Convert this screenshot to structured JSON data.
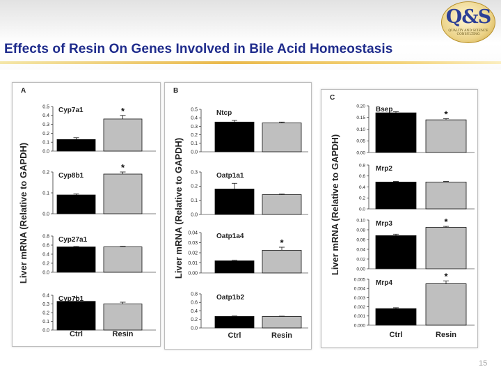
{
  "slide": {
    "title": "Effects of Resin On Genes Involved in Bile Acid Homeostasis",
    "page_number": "15",
    "logo": {
      "text": "Q&S",
      "tagline": "QUALITY AND SCIENCE CONSULTING"
    }
  },
  "colors": {
    "title": "#1f2c8c",
    "ctrl_bar": "#000000",
    "resin_bar": "#bfbfbf",
    "rule": "#e9b84a"
  },
  "chart_data": [
    {
      "type": "bar",
      "panel": "A",
      "ylabel": "Liver mRNA (Relative to GAPDH)",
      "categories": [
        "Ctrl",
        "Resin"
      ],
      "subplots": [
        {
          "name": "Cyp7a1",
          "values": [
            0.13,
            0.36
          ],
          "errors": [
            0.02,
            0.04
          ],
          "ylim": [
            0,
            0.5
          ],
          "yticks": [
            "0.0",
            "0.1",
            "0.2",
            "0.3",
            "0.4",
            "0.5"
          ],
          "significant": [
            false,
            true
          ]
        },
        {
          "name": "Cyp8b1",
          "values": [
            0.09,
            0.19
          ],
          "errors": [
            0.005,
            0.01
          ],
          "ylim": [
            0,
            0.2
          ],
          "yticks": [
            "0.0",
            "0.1",
            "0.2"
          ],
          "significant": [
            false,
            true
          ]
        },
        {
          "name": "Cyp27a1",
          "values": [
            0.56,
            0.56
          ],
          "errors": [
            0.01,
            0.01
          ],
          "ylim": [
            0,
            0.8
          ],
          "yticks": [
            "0.0",
            "0.2",
            "0.4",
            "0.6",
            "0.8"
          ],
          "significant": [
            false,
            false
          ]
        },
        {
          "name": "Cyp7b1",
          "values": [
            0.33,
            0.3
          ],
          "errors": [
            0.04,
            0.02
          ],
          "ylim": [
            0,
            0.4
          ],
          "yticks": [
            "0.0",
            "0.1",
            "0.2",
            "0.3",
            "0.4"
          ],
          "significant": [
            false,
            false
          ]
        }
      ]
    },
    {
      "type": "bar",
      "panel": "B",
      "ylabel": "Liver mRNA (Relative to GAPDH)",
      "categories": [
        "Ctrl",
        "Resin"
      ],
      "subplots": [
        {
          "name": "Ntcp",
          "values": [
            0.35,
            0.34
          ],
          "errors": [
            0.02,
            0.01
          ],
          "ylim": [
            0,
            0.5
          ],
          "yticks": [
            "0.0",
            "0.1",
            "0.2",
            "0.3",
            "0.4",
            "0.5"
          ],
          "significant": [
            false,
            false
          ]
        },
        {
          "name": "Oatp1a1",
          "values": [
            0.18,
            0.14
          ],
          "errors": [
            0.04,
            0.004
          ],
          "ylim": [
            0,
            0.3
          ],
          "yticks": [
            "0.0",
            "0.1",
            "0.2",
            "0.3"
          ],
          "significant": [
            false,
            false
          ]
        },
        {
          "name": "Oatp1a4",
          "values": [
            0.012,
            0.0225
          ],
          "errors": [
            0.0005,
            0.003
          ],
          "ylim": [
            0,
            0.04
          ],
          "yticks": [
            "0.00",
            "0.01",
            "0.02",
            "0.03",
            "0.04"
          ],
          "significant": [
            false,
            true
          ]
        },
        {
          "name": "Oatp1b2",
          "values": [
            0.27,
            0.27
          ],
          "errors": [
            0.01,
            0.007
          ],
          "ylim": [
            0,
            0.8
          ],
          "yticks": [
            "0.0",
            "0.2",
            "0.4",
            "0.6",
            "0.8"
          ],
          "significant": [
            false,
            false
          ]
        }
      ]
    },
    {
      "type": "bar",
      "panel": "C",
      "ylabel": "Liver mRNA (Relative to GAPDH)",
      "categories": [
        "Ctrl",
        "Resin"
      ],
      "subplots": [
        {
          "name": "Bsep",
          "values": [
            0.17,
            0.14
          ],
          "errors": [
            0.005,
            0.005
          ],
          "ylim": [
            0,
            0.2
          ],
          "yticks": [
            "0.00",
            "0.05",
            "0.10",
            "0.15",
            "0.20"
          ],
          "significant": [
            false,
            true
          ]
        },
        {
          "name": "Mrp2",
          "values": [
            0.49,
            0.49
          ],
          "errors": [
            0.01,
            0.01
          ],
          "ylim": [
            0,
            0.8
          ],
          "yticks": [
            "0.0",
            "0.2",
            "0.4",
            "0.6",
            "0.8"
          ],
          "significant": [
            false,
            false
          ]
        },
        {
          "name": "Mrp3",
          "values": [
            0.068,
            0.085
          ],
          "errors": [
            0.003,
            0.002
          ],
          "ylim": [
            0,
            0.1
          ],
          "yticks": [
            "0.00",
            "0.02",
            "0.04",
            "0.06",
            "0.08",
            "0.10"
          ],
          "significant": [
            false,
            true
          ]
        },
        {
          "name": "Mrp4",
          "values": [
            0.0018,
            0.0045
          ],
          "errors": [
            0.0001,
            0.0003
          ],
          "ylim": [
            0,
            0.005
          ],
          "yticks": [
            "0.000",
            "0.001",
            "0.002",
            "0.003",
            "0.004",
            "0.005"
          ],
          "significant": [
            false,
            true
          ]
        }
      ]
    }
  ]
}
